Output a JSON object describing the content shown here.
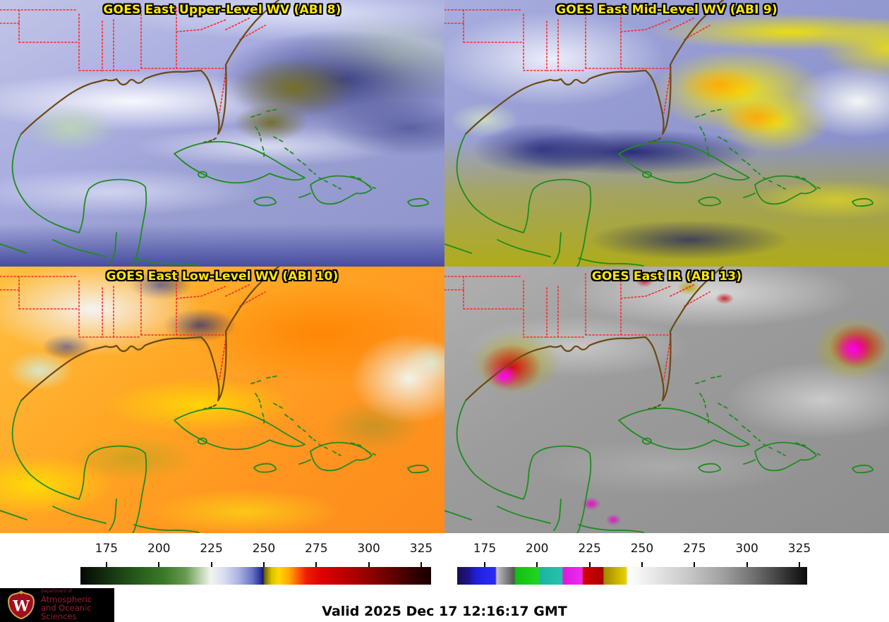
{
  "panels": [
    {
      "title": "GOES East Upper-Level WV (ABI 8)",
      "band": "ABI 8"
    },
    {
      "title": "GOES East Mid-Level WV (ABI 9)",
      "band": "ABI 9"
    },
    {
      "title": "GOES East Low-Level WV (ABI 10)",
      "band": "ABI 10"
    },
    {
      "title": "GOES East IR (ABI 13)",
      "band": "ABI 13"
    }
  ],
  "colorbars": {
    "wv": {
      "name": "water-vapor brightness temperature scale (K)",
      "axis_min": 162.6,
      "axis_max": 329.7,
      "ticks": [
        175,
        200,
        225,
        250,
        275,
        300,
        325
      ],
      "stops": [
        {
          "c": "#040704",
          "p": 0
        },
        {
          "c": "#153312",
          "p": 8
        },
        {
          "c": "#27591c",
          "p": 16
        },
        {
          "c": "#3c7a28",
          "p": 24
        },
        {
          "c": "#679a50",
          "p": 30
        },
        {
          "c": "#b7cfa9",
          "p": 34
        },
        {
          "c": "#f2f4ee",
          "p": 37.2
        },
        {
          "c": "#d9dcf0",
          "p": 41
        },
        {
          "c": "#aeb4e4",
          "p": 45
        },
        {
          "c": "#6a74c4",
          "p": 49
        },
        {
          "c": "#2e349c",
          "p": 51.3
        },
        {
          "c": "#141a78",
          "p": 52.1
        },
        {
          "c": "#6e6400",
          "p": 52.5
        },
        {
          "c": "#d8c200",
          "p": 54.5
        },
        {
          "c": "#ffd800",
          "p": 56.5
        },
        {
          "c": "#ffa800",
          "p": 59.5
        },
        {
          "c": "#ff5e00",
          "p": 62
        },
        {
          "c": "#ef1c00",
          "p": 64.5
        },
        {
          "c": "#dd0000",
          "p": 69
        },
        {
          "c": "#b80000",
          "p": 76
        },
        {
          "c": "#8c0200",
          "p": 83
        },
        {
          "c": "#5a0000",
          "p": 90
        },
        {
          "c": "#2c0000",
          "p": 96
        },
        {
          "c": "#180000",
          "p": 100
        }
      ]
    },
    "ir": {
      "name": "infrared brightness temperature scale (K)",
      "axis_min": 161.9,
      "axis_max": 328.7,
      "ticks": [
        175,
        200,
        225,
        250,
        275,
        300,
        325
      ],
      "stops": [
        {
          "c": "#180f4a",
          "p": 0
        },
        {
          "c": "#1e1490",
          "p": 3.5
        },
        {
          "c": "#1c1ccc",
          "p": 4.8
        },
        {
          "c": "#2626ec",
          "p": 8
        },
        {
          "c": "#2a2af2",
          "p": 10.9
        },
        {
          "c": "#c2c2c2",
          "p": 11.3
        },
        {
          "c": "#9a9a9a",
          "p": 13
        },
        {
          "c": "#565656",
          "p": 16.2
        },
        {
          "c": "#12c012",
          "p": 16.8
        },
        {
          "c": "#22d422",
          "p": 23.2
        },
        {
          "c": "#1cb4a0",
          "p": 23.8
        },
        {
          "c": "#26c2ae",
          "p": 29.8
        },
        {
          "c": "#da1cda",
          "p": 30.4
        },
        {
          "c": "#ee2aee",
          "p": 35.6
        },
        {
          "c": "#d20000",
          "p": 36.2
        },
        {
          "c": "#a80000",
          "p": 41.6
        },
        {
          "c": "#a08a00",
          "p": 42
        },
        {
          "c": "#e8d000",
          "p": 48.2
        },
        {
          "c": "#ffffff",
          "p": 48.8
        },
        {
          "c": "#e8e8e8",
          "p": 56
        },
        {
          "c": "#c8c8c8",
          "p": 66
        },
        {
          "c": "#a0a0a0",
          "p": 76
        },
        {
          "c": "#6e6e6e",
          "p": 85
        },
        {
          "c": "#3a3a3a",
          "p": 93
        },
        {
          "c": "#0a0a0a",
          "p": 100
        }
      ]
    }
  },
  "footer": {
    "valid": "Valid 2025 Dec 17 12:16:17 GMT"
  },
  "logo": {
    "dept": "Department of",
    "line1": "Atmospheric",
    "line2": "and Oceanic Sciences",
    "monogram": "W"
  },
  "colors": {
    "panel_title": "#ffe800",
    "coast_green": "#1f8b1f",
    "coast_brown": "#6b4a14",
    "state_border_red": "#ff2525",
    "logo_text": "#9c1c30",
    "logo_bg": "#000000",
    "valid_text": "#000000"
  }
}
